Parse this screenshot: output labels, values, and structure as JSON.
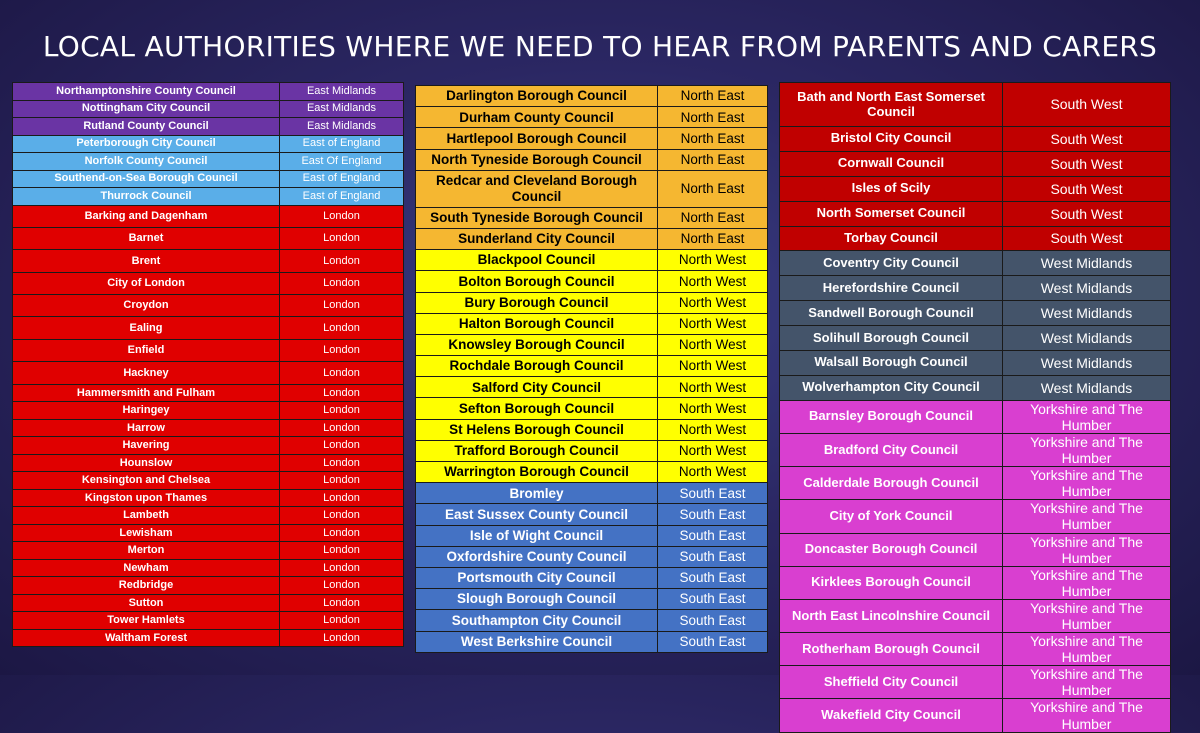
{
  "title": "LOCAL AUTHORITIES WHERE WE NEED TO HEAR FROM PARENTS AND CARERS",
  "colors": {
    "east_midlands": "#6a34a4",
    "east_of_england": "#5aaee8",
    "london": "#e00000",
    "north_east": "#f5b731",
    "north_west": "#ffff00",
    "south_east": "#4472c4",
    "south_west": "#c00000",
    "west_midlands": "#44546a",
    "yorkshire": "#d93fd0"
  },
  "tables": [
    [
      [
        "Northamptonshire County Council",
        "East Midlands"
      ],
      [
        "Nottingham City Council",
        "East Midlands"
      ],
      [
        "Rutland County Council",
        "East Midlands"
      ],
      [
        "Peterborough City Council",
        "East of England"
      ],
      [
        "Norfolk County Council",
        "East Of England"
      ],
      [
        "Southend-on-Sea Borough Council",
        "East of England"
      ],
      [
        "Thurrock Council",
        "East of England"
      ],
      [
        "Barking and Dagenham",
        "London"
      ],
      [
        "Barnet",
        "London"
      ],
      [
        "Brent",
        "London"
      ],
      [
        "City of London",
        "London"
      ],
      [
        "Croydon",
        "London"
      ],
      [
        "Ealing",
        "London"
      ],
      [
        "Enfield",
        "London"
      ],
      [
        "Hackney",
        "London"
      ],
      [
        "Hammersmith and Fulham",
        "London"
      ],
      [
        "Haringey",
        "London"
      ],
      [
        "Harrow",
        "London"
      ],
      [
        "Havering",
        "London"
      ],
      [
        "Hounslow",
        "London"
      ],
      [
        "Kensington and Chelsea",
        "London"
      ],
      [
        "Kingston upon Thames",
        "London"
      ],
      [
        "Lambeth",
        "London"
      ],
      [
        "Lewisham",
        "London"
      ],
      [
        "Merton",
        "London"
      ],
      [
        "Newham",
        "London"
      ],
      [
        "Redbridge",
        "London"
      ],
      [
        "Sutton",
        "London"
      ],
      [
        "Tower Hamlets",
        "London"
      ],
      [
        "Waltham Forest",
        "London"
      ]
    ],
    [
      [
        "Darlington Borough Council",
        "North East"
      ],
      [
        "Durham County Council",
        "North East"
      ],
      [
        "Hartlepool Borough Council",
        "North East"
      ],
      [
        "North Tyneside Borough Council",
        "North East"
      ],
      [
        "Redcar and Cleveland Borough Council",
        "North East"
      ],
      [
        "South Tyneside Borough Council",
        "North East"
      ],
      [
        "Sunderland City Council",
        "North East"
      ],
      [
        "Blackpool Council",
        "North West"
      ],
      [
        "Bolton Borough Council",
        "North West"
      ],
      [
        "Bury Borough Council",
        "North West"
      ],
      [
        "Halton Borough Council",
        "North West"
      ],
      [
        "Knowsley Borough Council",
        "North West"
      ],
      [
        "Rochdale Borough Council",
        "North West"
      ],
      [
        "Salford City Council",
        "North West"
      ],
      [
        "Sefton Borough Council",
        "North West"
      ],
      [
        "St Helens Borough Council",
        "North West"
      ],
      [
        "Trafford Borough Council",
        "North West"
      ],
      [
        "Warrington Borough Council",
        "North West"
      ],
      [
        "Bromley",
        "South East"
      ],
      [
        "East Sussex County Council",
        "South East"
      ],
      [
        "Isle of Wight Council",
        "South East"
      ],
      [
        "Oxfordshire County Council",
        "South East"
      ],
      [
        "Portsmouth City Council",
        "South East"
      ],
      [
        "Slough Borough Council",
        "South East"
      ],
      [
        "Southampton City Council",
        "South East"
      ],
      [
        "West Berkshire Council",
        "South East"
      ]
    ],
    [
      [
        "Bath and North East Somerset Council",
        "South West"
      ],
      [
        "Bristol City Council",
        "South West"
      ],
      [
        "Cornwall Council",
        "South West"
      ],
      [
        "Isles of Scily",
        "South West"
      ],
      [
        "North Somerset Council",
        "South West"
      ],
      [
        "Torbay Council",
        "South West"
      ],
      [
        "Coventry City Council",
        "West Midlands"
      ],
      [
        "Herefordshire Council",
        "West Midlands"
      ],
      [
        "Sandwell Borough Council",
        "West Midlands"
      ],
      [
        "Solihull Borough Council",
        "West Midlands"
      ],
      [
        "Walsall Borough Council",
        "West Midlands"
      ],
      [
        "Wolverhampton City Council",
        "West Midlands"
      ],
      [
        "Barnsley Borough Council",
        "Yorkshire and The Humber"
      ],
      [
        "Bradford City Council",
        "Yorkshire and The Humber"
      ],
      [
        "Calderdale Borough Council",
        "Yorkshire and The Humber"
      ],
      [
        "City of York Council",
        "Yorkshire and The Humber"
      ],
      [
        "Doncaster Borough Council",
        "Yorkshire and The Humber"
      ],
      [
        "Kirklees Borough Council",
        "Yorkshire and The Humber"
      ],
      [
        "North East Lincolnshire Council",
        "Yorkshire and The Humber"
      ],
      [
        "Rotherham Borough Council",
        "Yorkshire and The Humber"
      ],
      [
        "Sheffield City Council",
        "Yorkshire and The Humber"
      ],
      [
        "Wakefield City Council",
        "Yorkshire and The Humber"
      ]
    ]
  ]
}
